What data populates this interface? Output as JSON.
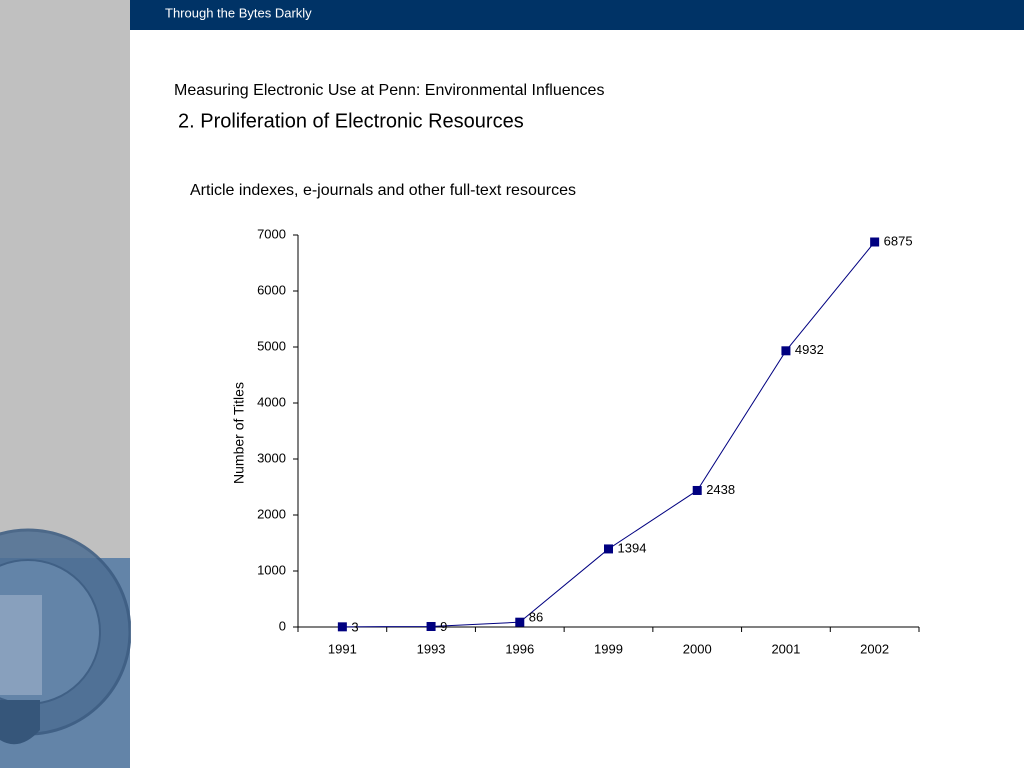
{
  "header": {
    "title": "Through the Bytes Darkly"
  },
  "slide": {
    "heading": "Measuring Electronic Use at Penn: Environmental Influences",
    "subheading": "2. Proliferation of Electronic Resources"
  },
  "chart_data": {
    "type": "line",
    "title": "Article indexes, e-journals and other full-text resources",
    "y_label": "Number of Titles",
    "categories": [
      "1991",
      "1993",
      "1996",
      "1999",
      "2000",
      "2001",
      "2002"
    ],
    "values": [
      3,
      9,
      86,
      1394,
      2438,
      4932,
      6875
    ],
    "color": "#000080",
    "ylim": [
      0,
      7000
    ],
    "yticks": [
      0,
      1000,
      2000,
      3000,
      4000,
      5000,
      6000,
      7000
    ]
  }
}
